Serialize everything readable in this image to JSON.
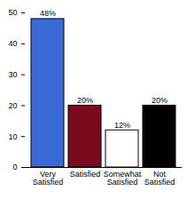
{
  "chart_data": {
    "type": "bar",
    "categories": [
      "Very Satisfied",
      "Satisfied",
      "Somewhat Satisfied",
      "Not Satisfied"
    ],
    "values": [
      48,
      20,
      12,
      20
    ],
    "value_labels": [
      "48%",
      "20%",
      "12%",
      "20%"
    ],
    "colors": [
      "#3a6ad6",
      "#7a0b1f",
      "#ffffff",
      "#000000"
    ],
    "ylim": [
      0,
      50
    ],
    "yticks": [
      0,
      10,
      20,
      30,
      40,
      50
    ],
    "grid": false,
    "data_labels": true
  }
}
